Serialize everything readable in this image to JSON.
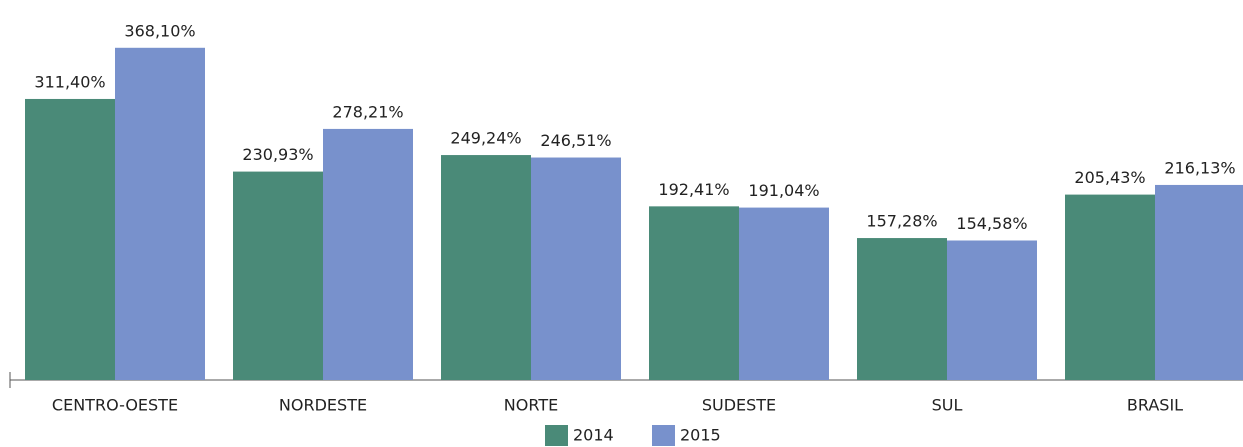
{
  "chart_data": {
    "type": "bar",
    "categories": [
      "CENTRO-OESTE",
      "NORDESTE",
      "NORTE",
      "SUDESTE",
      "SUL",
      "BRASIL"
    ],
    "series": [
      {
        "name": "2014",
        "color": "#4a8a78",
        "values": [
          311.4,
          230.93,
          249.24,
          192.41,
          157.28,
          205.43
        ],
        "value_labels": [
          "311,40%",
          "230,93%",
          "249,24%",
          "192,41%",
          "157,28%",
          "205,43%"
        ]
      },
      {
        "name": "2015",
        "color": "#7891cc",
        "values": [
          368.1,
          278.21,
          246.51,
          191.04,
          154.58,
          216.13
        ],
        "value_labels": [
          "368,10%",
          "278,21%",
          "246,51%",
          "191,04%",
          "154,58%",
          "216,13%"
        ]
      }
    ],
    "ylim": [
      0,
      400
    ]
  }
}
